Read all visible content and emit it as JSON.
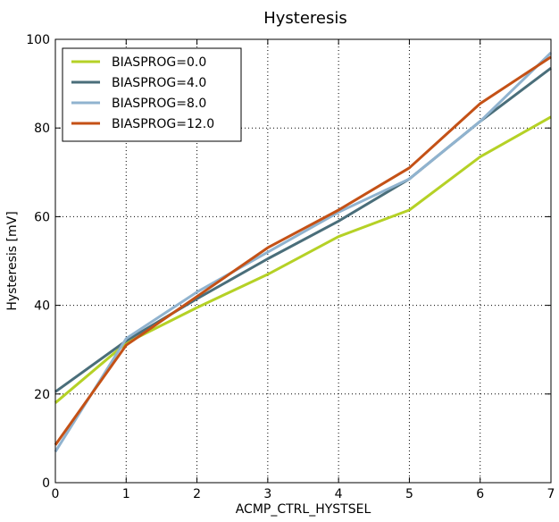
{
  "chart_data": {
    "type": "line",
    "title": "Hysteresis",
    "xlabel": "ACMP_CTRL_HYSTSEL",
    "ylabel": "Hysteresis [mV]",
    "xlim": [
      0,
      7
    ],
    "ylim": [
      0,
      100
    ],
    "xticks": [
      0,
      1,
      2,
      3,
      4,
      5,
      6,
      7
    ],
    "yticks": [
      0,
      20,
      40,
      60,
      80,
      100
    ],
    "grid": true,
    "legend_position": "top-left",
    "x": [
      0,
      1,
      2,
      3,
      4,
      5,
      6,
      7
    ],
    "series": [
      {
        "name": "BIASPROG=0.0",
        "color": "#b5d126",
        "values": [
          18.0,
          31.5,
          39.5,
          47.0,
          55.5,
          61.5,
          73.5,
          82.5
        ]
      },
      {
        "name": "BIASPROG=4.0",
        "color": "#4a6e7a",
        "values": [
          20.5,
          32.0,
          41.5,
          50.5,
          59.0,
          68.5,
          81.5,
          93.5
        ]
      },
      {
        "name": "BIASPROG=8.0",
        "color": "#90b3cf",
        "values": [
          7.0,
          32.5,
          43.0,
          52.0,
          61.0,
          68.5,
          81.5,
          97.0
        ]
      },
      {
        "name": "BIASPROG=12.0",
        "color": "#c45116",
        "values": [
          8.5,
          31.0,
          42.0,
          53.0,
          61.5,
          71.0,
          85.5,
          96.0
        ]
      }
    ]
  }
}
